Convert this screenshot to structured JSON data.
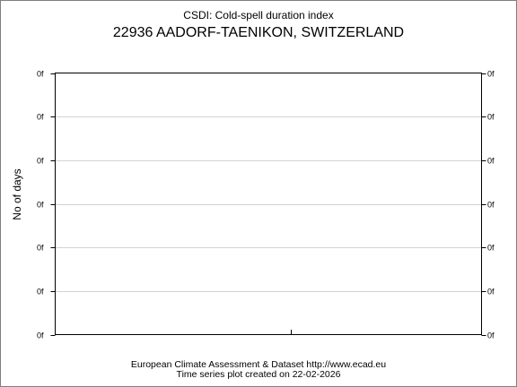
{
  "header": {
    "subtitle": "CSDI: Cold-spell duration index",
    "title": "22936 AADORF-TAENIKON, SWITZERLAND"
  },
  "footer": {
    "line1": "European Climate Assessment & Dataset  http://www.ecad.eu",
    "line2": "Time series plot created on 22-02-2026"
  },
  "chart_data": {
    "type": "line",
    "title": "22936 AADORF-TAENIKON, SWITZERLAND",
    "subtitle": "CSDI: Cold-spell duration index",
    "xlabel": "",
    "ylabel": "No of days",
    "y_tick_labels": [
      "0f",
      "0f",
      "0f",
      "0f",
      "0f",
      "0f",
      "0f"
    ],
    "x_tick_labels": [],
    "series": [],
    "grid": true,
    "colors": {
      "axis": "#000000",
      "grid": "#d3d3d3",
      "frame": "#7f7f7f"
    }
  }
}
